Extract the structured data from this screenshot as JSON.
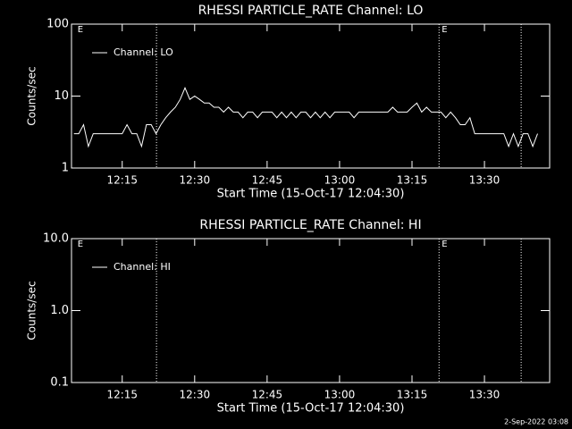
{
  "chart_data": [
    {
      "type": "line",
      "title": "RHESSI  PARTICLE_RATE  Channel:  LO",
      "xlabel": "Start Time (15-Oct-17 12:04:30)",
      "ylabel": "Counts/sec",
      "log_y": true,
      "legend": "upper left",
      "xlim": [
        724.5,
        823.5
      ],
      "xticks": [
        {
          "value": 735,
          "label": "12:15"
        },
        {
          "value": 750,
          "label": "12:30"
        },
        {
          "value": 765,
          "label": "12:45"
        },
        {
          "value": 780,
          "label": "13:00"
        },
        {
          "value": 795,
          "label": "13:15"
        },
        {
          "value": 810,
          "label": "13:30"
        }
      ],
      "ylim": [
        1,
        100
      ],
      "yticks": [
        1,
        10,
        100
      ],
      "vlines": [
        742.1,
        800.6,
        817.6
      ],
      "flags": [
        {
          "x": 725.2,
          "label": "E"
        },
        {
          "x": 800.6,
          "label": "E"
        }
      ],
      "series": [
        {
          "name": "Channel: LO",
          "color": "#ffffff",
          "x": [
            725,
            726,
            727,
            728,
            729,
            730,
            731,
            732,
            733,
            734,
            735,
            736,
            737,
            738,
            739,
            740,
            741,
            742,
            743,
            744,
            745,
            746,
            747,
            748,
            749,
            750,
            751,
            752,
            753,
            754,
            755,
            756,
            757,
            758,
            759,
            760,
            761,
            762,
            763,
            764,
            765,
            766,
            767,
            768,
            769,
            770,
            771,
            772,
            773,
            774,
            775,
            776,
            777,
            778,
            779,
            780,
            781,
            782,
            783,
            784,
            785,
            786,
            787,
            788,
            789,
            790,
            791,
            792,
            793,
            794,
            795,
            796,
            797,
            798,
            799,
            800,
            801,
            802,
            803,
            804,
            805,
            806,
            807,
            808,
            809,
            810,
            811,
            812,
            813,
            814,
            815,
            816,
            817,
            818,
            819,
            820,
            821
          ],
          "values": [
            3,
            3,
            4,
            2,
            3,
            3,
            3,
            3,
            3,
            3,
            3,
            4,
            3,
            3,
            2,
            4,
            4,
            3,
            4,
            5,
            6,
            7,
            9,
            13,
            9,
            10,
            9,
            8,
            8,
            7,
            7,
            6,
            7,
            6,
            6,
            5,
            6,
            6,
            5,
            6,
            6,
            6,
            5,
            6,
            5,
            6,
            5,
            6,
            6,
            5,
            6,
            5,
            6,
            5,
            6,
            6,
            6,
            6,
            5,
            6,
            6,
            6,
            6,
            6,
            6,
            6,
            7,
            6,
            6,
            6,
            7,
            8,
            6,
            7,
            6,
            6,
            6,
            5,
            6,
            5,
            4,
            4,
            5,
            3,
            3,
            3,
            3,
            3,
            3,
            3,
            2,
            3,
            2,
            3,
            3,
            2,
            3
          ]
        }
      ]
    },
    {
      "type": "line",
      "title": "RHESSI  PARTICLE_RATE  Channel:  HI",
      "xlabel": "Start Time (15-Oct-17 12:04:30)",
      "ylabel": "Counts/sec",
      "log_y": true,
      "legend": "upper left",
      "xlim": [
        724.5,
        823.5
      ],
      "xticks": [
        {
          "value": 735,
          "label": "12:15"
        },
        {
          "value": 750,
          "label": "12:30"
        },
        {
          "value": 765,
          "label": "12:45"
        },
        {
          "value": 780,
          "label": "13:00"
        },
        {
          "value": 795,
          "label": "13:15"
        },
        {
          "value": 810,
          "label": "13:30"
        }
      ],
      "ylim": [
        0.1,
        10
      ],
      "yticks": [
        0.1,
        {
          "value": 1,
          "label": "1.0"
        },
        {
          "value": 10,
          "label": "10.0"
        }
      ],
      "vlines": [
        742.1,
        800.6,
        817.6
      ],
      "flags": [
        {
          "x": 725.2,
          "label": "E"
        },
        {
          "x": 800.6,
          "label": "E"
        }
      ],
      "series": [
        {
          "name": "Channel: HI",
          "color": "#ffffff",
          "x": [],
          "values": []
        }
      ]
    }
  ],
  "footer": "2-Sep-2022 03:08"
}
